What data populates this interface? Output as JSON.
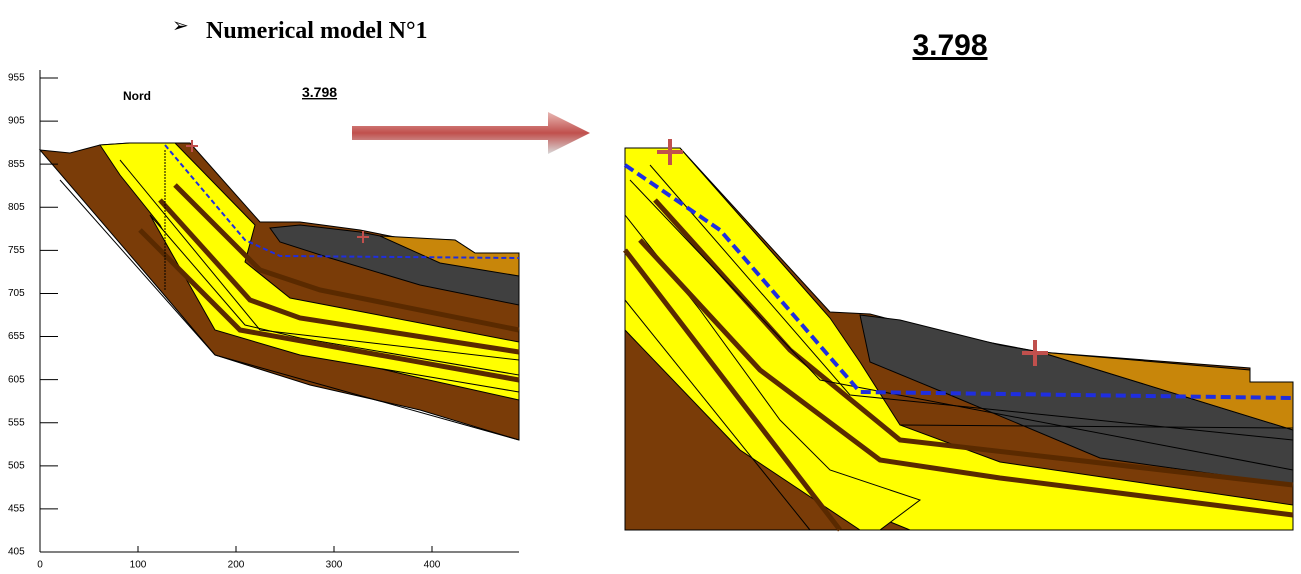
{
  "heading": {
    "bullet": "➢",
    "text": "Numerical model N°1"
  },
  "left_figure": {
    "label": "Nord",
    "factor": "3.798",
    "yticks": [
      955,
      905,
      855,
      805,
      755,
      705,
      655,
      605,
      555,
      505,
      455,
      405
    ],
    "xticks": [
      0,
      100,
      200,
      300,
      400
    ]
  },
  "right_figure": {
    "factor": "3.798"
  }
}
